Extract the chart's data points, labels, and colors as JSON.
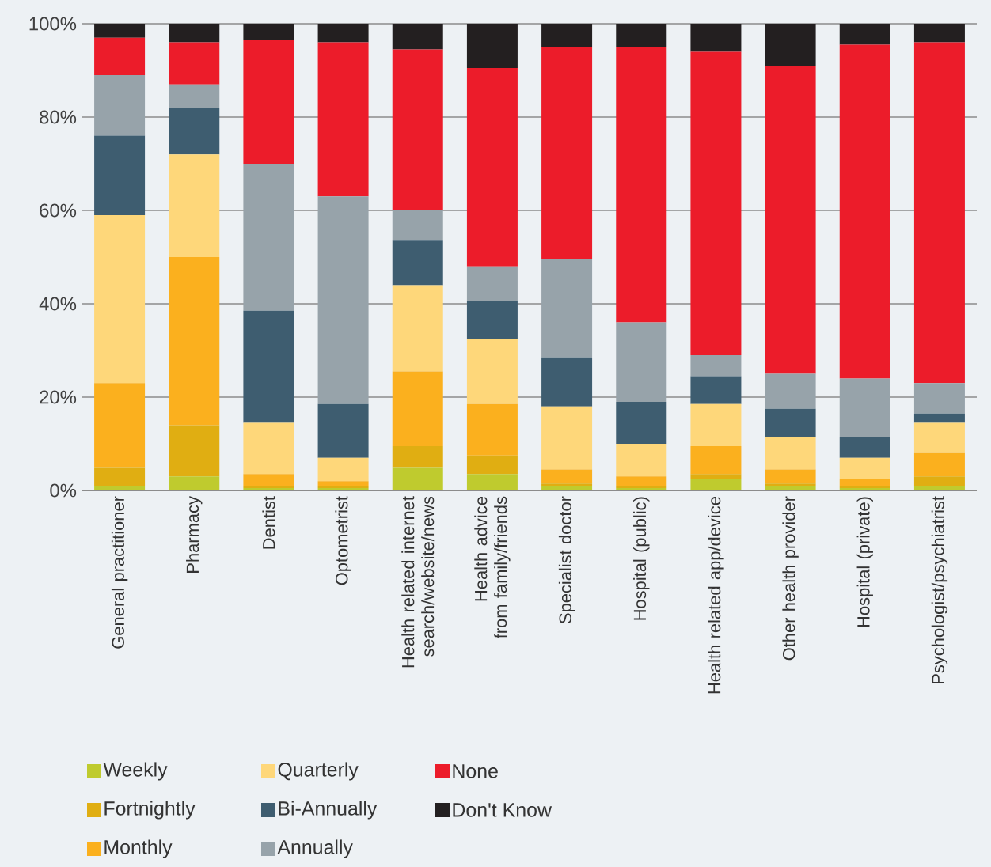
{
  "chart_data": {
    "type": "bar",
    "stacked": true,
    "categories": [
      "General practitioner",
      "Pharmacy",
      "Dentist",
      "Optometrist",
      "Health related internet search/website/news",
      "Health advice from family/friends",
      "Specialist  doctor",
      "Hospital (public)",
      "Health related app/device",
      "Other health provider",
      "Hospital (private)",
      "Psychologist/psychiatrist"
    ],
    "series": [
      {
        "name": "Weekly",
        "color": "#bfcb2e",
        "values": [
          1,
          3,
          0.5,
          0.5,
          5,
          3.5,
          1,
          0.5,
          2.5,
          1,
          0.5,
          1
        ]
      },
      {
        "name": "Fortnightly",
        "color": "#e0ae12",
        "values": [
          4,
          11,
          0.5,
          0.5,
          4.5,
          4,
          0.5,
          0.5,
          1,
          0.5,
          0.5,
          2
        ]
      },
      {
        "name": "Monthly",
        "color": "#fbb01e",
        "values": [
          18,
          36,
          2.5,
          1,
          16,
          11,
          3,
          2,
          6,
          3,
          1.5,
          5
        ]
      },
      {
        "name": "Quarterly",
        "color": "#fed77a",
        "values": [
          36,
          22,
          11,
          5,
          18.5,
          14,
          13.5,
          7,
          9,
          7,
          4.5,
          6.5
        ]
      },
      {
        "name": "Bi-Annually",
        "color": "#3e5d70",
        "values": [
          17,
          10,
          24,
          11.5,
          9.5,
          8,
          10.5,
          9,
          6,
          6,
          4.5,
          2
        ]
      },
      {
        "name": "Annually",
        "color": "#97a3aa",
        "values": [
          13,
          5,
          31.5,
          44.5,
          6.5,
          7.5,
          21,
          17,
          4.5,
          7.5,
          12.5,
          6.5
        ]
      },
      {
        "name": "None",
        "color": "#ec1c2a",
        "values": [
          8,
          9,
          26.5,
          33,
          34.5,
          42.5,
          45.5,
          59,
          65,
          66,
          71.5,
          73
        ]
      },
      {
        "name": "Don't Know",
        "color": "#231f20",
        "values": [
          3,
          4,
          3.5,
          4,
          5.5,
          9.5,
          5,
          5,
          6,
          9,
          4.5,
          4
        ]
      }
    ],
    "ylim": [
      0,
      100
    ],
    "yticks": [
      {
        "value": 0,
        "label": "0%"
      },
      {
        "value": 20,
        "label": "20%"
      },
      {
        "value": 40,
        "label": "40%"
      },
      {
        "value": 60,
        "label": "60%"
      },
      {
        "value": 80,
        "label": "80%"
      },
      {
        "value": 100,
        "label": "100%"
      }
    ],
    "grid": "y",
    "legend": "bottom"
  }
}
